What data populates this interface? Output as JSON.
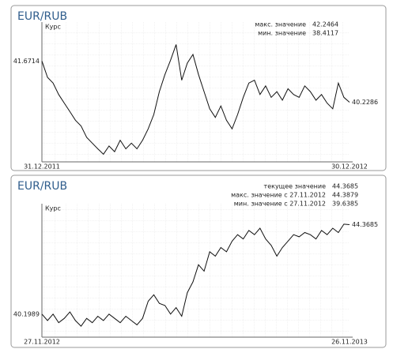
{
  "chart_data": [
    {
      "type": "line",
      "title": "EUR/RUB",
      "y_label": "Курс",
      "grid": true,
      "ylim": [
        38.2,
        42.7
      ],
      "stats": [
        {
          "label": "макс. значение",
          "value": 42.2464,
          "color": "#4caf50"
        },
        {
          "label": "мин. значение",
          "value": 38.4117,
          "color": "#d9534f"
        }
      ],
      "categories": [
        "31.12.2011",
        null,
        null,
        null,
        null,
        null,
        null,
        null,
        null,
        null,
        null,
        null,
        null,
        null,
        null,
        null,
        null,
        null,
        null,
        null,
        null,
        null,
        null,
        null,
        null,
        null,
        null,
        null,
        null,
        null,
        null,
        null,
        null,
        null,
        null,
        null,
        null,
        null,
        null,
        null,
        null,
        null,
        null,
        null,
        null,
        null,
        null,
        null,
        null,
        null,
        null,
        null,
        null,
        null,
        null,
        "30.12.2012"
      ],
      "series": [
        {
          "color": "#111111",
          "values": [
            41.6714,
            41.1,
            40.9,
            40.5,
            40.2,
            39.9,
            39.6,
            39.4,
            39.0,
            38.8,
            38.6,
            38.4117,
            38.7,
            38.5,
            38.9,
            38.6,
            38.8,
            38.6,
            38.9,
            39.3,
            39.8,
            40.6,
            41.2,
            41.7,
            42.2464,
            41.0,
            41.6,
            41.9,
            41.2,
            40.6,
            40.0,
            39.7,
            40.1,
            39.6,
            39.3,
            39.8,
            40.4,
            40.9,
            41.0,
            40.5,
            40.8,
            40.4,
            40.6,
            40.3,
            40.7,
            40.5,
            40.4,
            40.8,
            40.6,
            40.3,
            40.5,
            40.2,
            40.0,
            40.9,
            40.4,
            40.2286
          ]
        }
      ]
    },
    {
      "type": "line",
      "title": "EUR/RUB",
      "y_label": "Курс",
      "grid": true,
      "ylim": [
        39.2,
        44.9
      ],
      "stats": [
        {
          "label": "текущее значение",
          "value": 44.3685,
          "color": "#3a6fb0"
        },
        {
          "label": "макс. значение с 27.11.2012",
          "value": 44.3879,
          "color": "#4caf50"
        },
        {
          "label": "мин. значение с 27.11.2012",
          "value": 39.6385,
          "color": "#d9534f"
        }
      ],
      "categories": [
        "27.11.2012",
        null,
        null,
        null,
        null,
        null,
        null,
        null,
        null,
        null,
        null,
        null,
        null,
        null,
        null,
        null,
        null,
        null,
        null,
        null,
        null,
        null,
        null,
        null,
        null,
        null,
        null,
        null,
        null,
        null,
        null,
        null,
        null,
        null,
        null,
        null,
        null,
        null,
        null,
        null,
        null,
        null,
        null,
        null,
        null,
        null,
        null,
        null,
        null,
        null,
        null,
        null,
        null,
        null,
        null,
        "26.11.2013"
      ],
      "series": [
        {
          "color": "#111111",
          "values": [
            40.1989,
            39.9,
            40.2,
            39.8,
            40.0,
            40.3,
            39.9,
            39.6385,
            40.0,
            39.8,
            40.1,
            39.9,
            40.2,
            40.0,
            39.8,
            40.1,
            39.9,
            39.7,
            40.0,
            40.8,
            41.1,
            40.7,
            40.6,
            40.2,
            40.5,
            40.1,
            41.2,
            41.7,
            42.5,
            42.2,
            43.1,
            42.9,
            43.3,
            43.1,
            43.6,
            43.9,
            43.7,
            44.1,
            43.9,
            44.2,
            43.7,
            43.4,
            42.9,
            43.3,
            43.6,
            43.9,
            43.8,
            44.0,
            43.9,
            43.7,
            44.1,
            43.9,
            44.2,
            44.0,
            44.3879,
            44.3685
          ]
        }
      ]
    }
  ]
}
